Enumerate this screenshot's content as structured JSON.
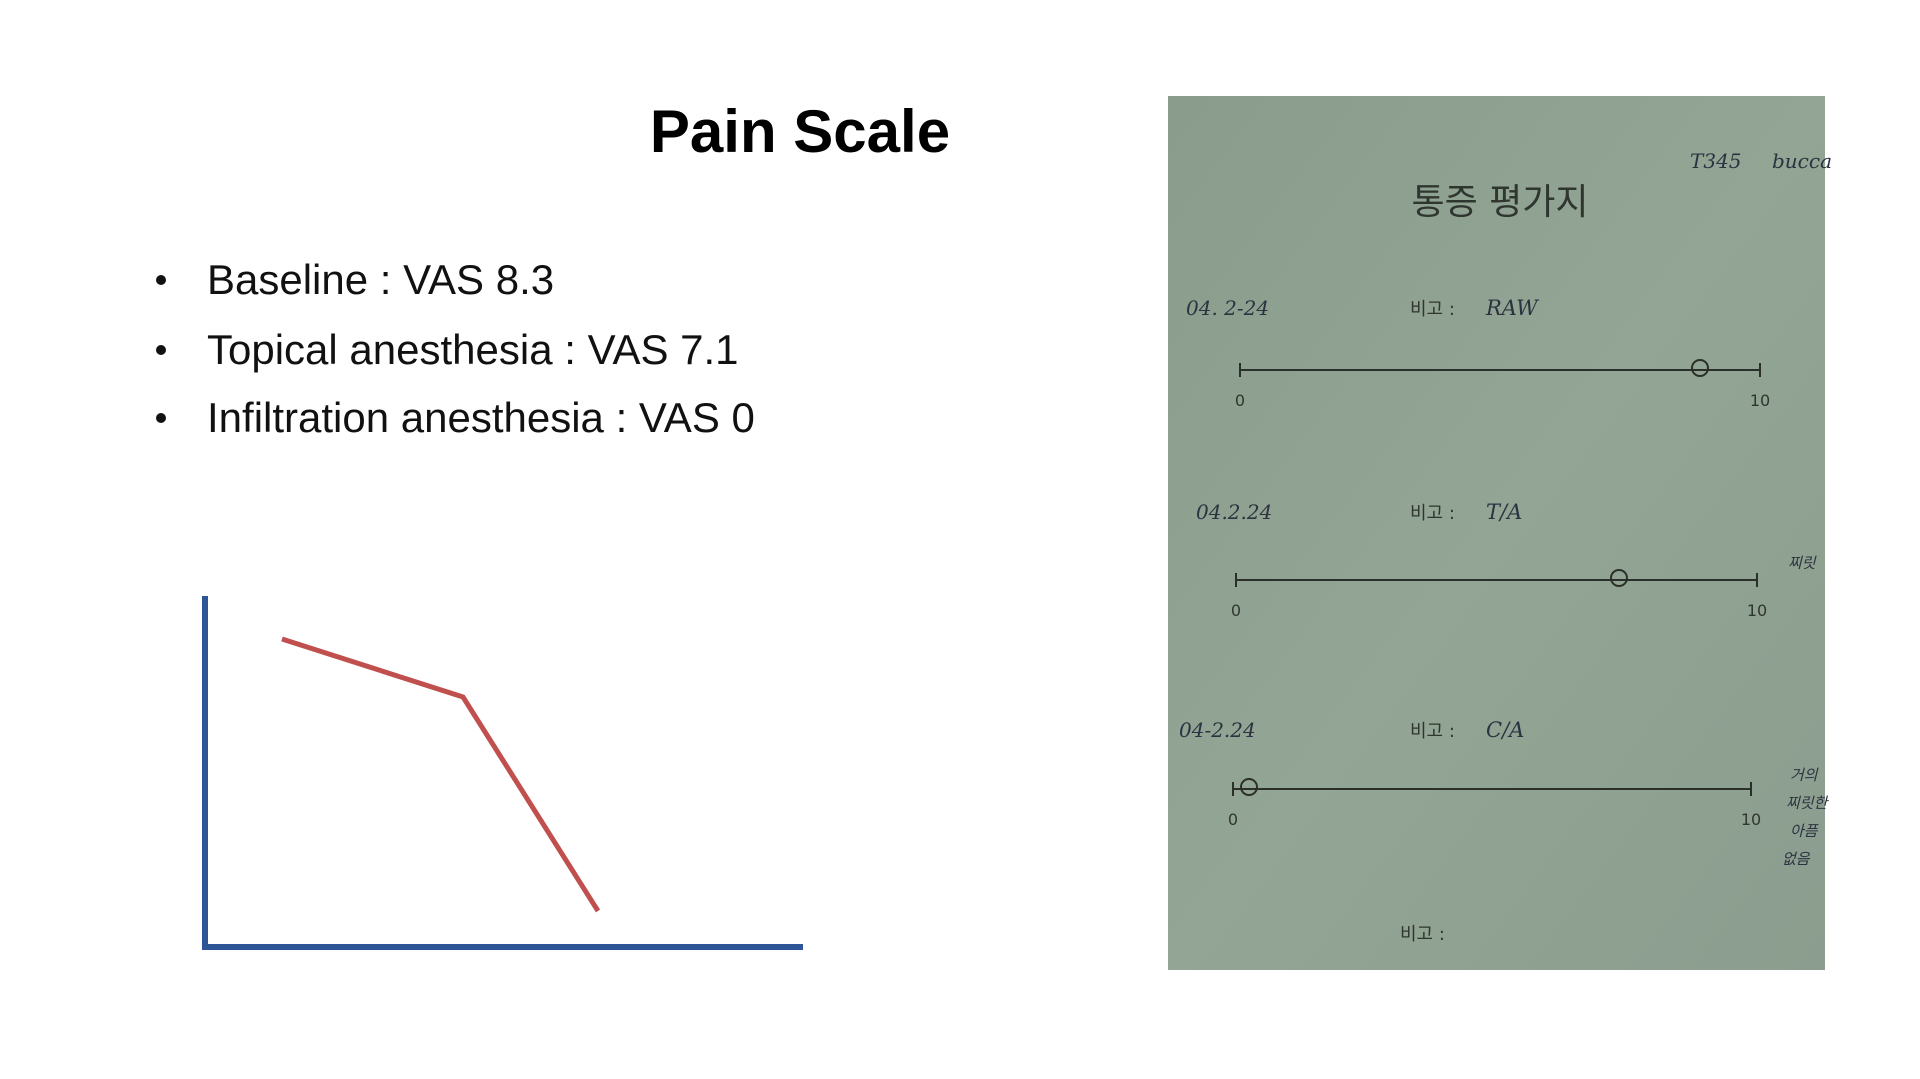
{
  "header": {
    "title": "Pain Scale"
  },
  "bullets": [
    "Baseline : VAS 8.3",
    "Topical anesthesia : VAS 7.1",
    "Infiltration anesthesia : VAS 0"
  ],
  "form": {
    "title": "통증 평가지",
    "code": "T345",
    "site": "bucca",
    "entries": [
      {
        "date": "04. 2-24",
        "note_label": "비고 :",
        "note": "RAW",
        "scale_min": "0",
        "scale_max": "10"
      },
      {
        "date": "04.2.24",
        "note_label": "비고 :",
        "note": "T/A",
        "scale_min": "0",
        "scale_max": "10"
      },
      {
        "date": "04-2.24",
        "note_label": "비고 :",
        "note": "C/A",
        "scale_min": "0",
        "scale_max": "10"
      }
    ],
    "side_notes": [
      "찌릿",
      "거의",
      "찌릿한",
      "아픔",
      "없음"
    ],
    "footer_label": "비고 :"
  }
}
